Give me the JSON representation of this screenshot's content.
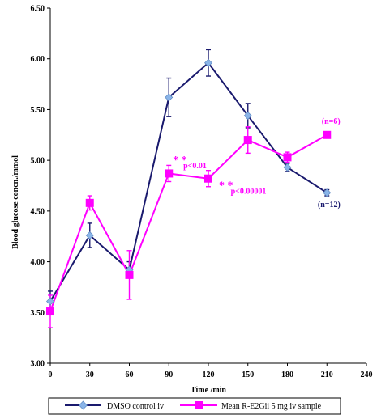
{
  "chart_data": {
    "type": "line",
    "xlabel": "Time /min",
    "ylabel": "Blood glucose concn./mmol",
    "xlim": [
      0,
      240
    ],
    "ylim": [
      3.0,
      6.5
    ],
    "x_ticks": [
      "0",
      "30",
      "60",
      "90",
      "120",
      "150",
      "180",
      "210",
      "240"
    ],
    "y_ticks": [
      "3.00",
      "3.50",
      "4.00",
      "4.50",
      "5.00",
      "5.50",
      "6.00",
      "6.50"
    ],
    "x_tick_values": [
      0,
      30,
      60,
      90,
      120,
      150,
      180,
      210,
      240
    ],
    "y_tick_values": [
      3.0,
      3.5,
      4.0,
      4.5,
      5.0,
      5.5,
      6.0,
      6.5
    ],
    "grid": false,
    "legend_position": "bottom",
    "series": [
      {
        "name": "DMSO control iv",
        "color": "#1a1a6e",
        "marker": "diamond",
        "marker_color": "#8ab4e8",
        "x": [
          0,
          30,
          60,
          90,
          120,
          150,
          180,
          210
        ],
        "y": [
          3.61,
          4.26,
          3.92,
          5.62,
          5.96,
          5.44,
          4.93,
          4.68
        ],
        "error": [
          0.1,
          0.12,
          0.08,
          0.19,
          0.13,
          0.12,
          0.04,
          0.03
        ]
      },
      {
        "name": "Mean R-E2Gii 5 mg iv sample",
        "color": "#ff00ff",
        "marker": "square",
        "marker_color": "#ff00ff",
        "x": [
          0,
          30,
          60,
          90,
          120,
          150,
          180,
          210
        ],
        "y": [
          3.51,
          4.58,
          3.87,
          4.87,
          4.82,
          5.2,
          5.03,
          5.25
        ],
        "error": [
          0.16,
          0.07,
          0.24,
          0.08,
          0.08,
          0.13,
          0.05,
          0.02
        ]
      }
    ],
    "annotations": [
      {
        "text": "* *",
        "x": 93,
        "y": 4.97,
        "color": "#ff00ff",
        "style": "star"
      },
      {
        "text": "p<0.01",
        "x": 101,
        "y": 4.92,
        "color": "#ff00ff",
        "style": "text"
      },
      {
        "text": "* *",
        "x": 128,
        "y": 4.72,
        "color": "#ff00ff",
        "style": "star"
      },
      {
        "text": "p<0.00001",
        "x": 137,
        "y": 4.67,
        "color": "#ff00ff",
        "style": "text"
      },
      {
        "text": "(n=6)",
        "x": 206,
        "y": 5.36,
        "color": "#ff00ff",
        "style": "text"
      },
      {
        "text": "(n=12)",
        "x": 203,
        "y": 4.54,
        "color": "#1a1a6e",
        "style": "text"
      }
    ]
  }
}
